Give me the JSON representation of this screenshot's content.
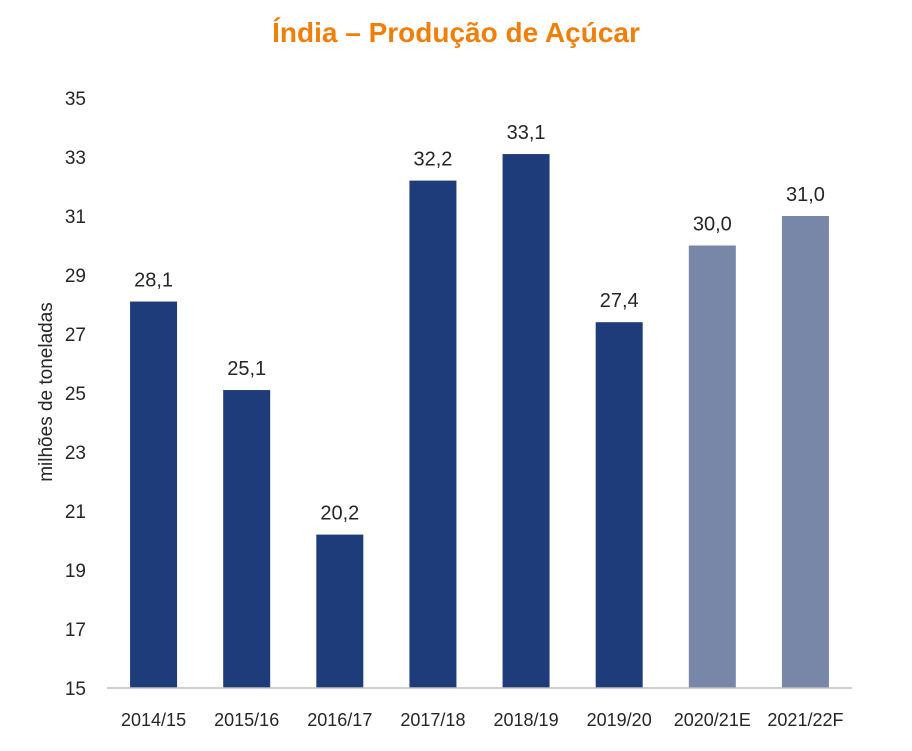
{
  "colors": {
    "title": "#F07F09",
    "actual_bar": "#1F3C7A",
    "estimate_bar": "#7886A8",
    "axis_line": "#BFBFBF",
    "text": "#262626"
  },
  "chart_data": {
    "type": "bar",
    "title": "Índia –  Produção de Açúcar",
    "xlabel": "",
    "ylabel": "milhões de toneladas",
    "ylim": [
      15,
      35
    ],
    "yticks": [
      15,
      17,
      19,
      21,
      23,
      25,
      27,
      29,
      31,
      33,
      35
    ],
    "grid": false,
    "categories": [
      "2014/15",
      "2015/16",
      "2016/17",
      "2017/18",
      "2018/19",
      "2019/20",
      "2020/21E",
      "2021/22F"
    ],
    "values": [
      28.1,
      25.1,
      20.2,
      32.2,
      33.1,
      27.4,
      30.0,
      31.0
    ],
    "data_labels": [
      "28,1",
      "25,1",
      "20,2",
      "32,2",
      "33,1",
      "27,4",
      "30,0",
      "31,0"
    ],
    "kinds": [
      "actual",
      "actual",
      "actual",
      "actual",
      "actual",
      "actual",
      "estimate",
      "estimate"
    ]
  }
}
